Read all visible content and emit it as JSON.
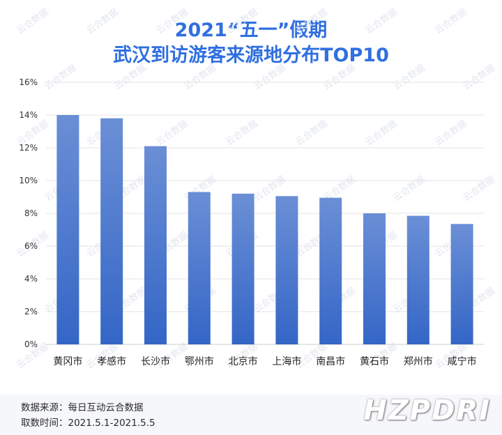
{
  "header": {
    "title_line1": "2021“五一”假期",
    "title_line2": "武汉到访游客来源地分布TOP10"
  },
  "chart_data": {
    "type": "bar",
    "title": "2021“五一”假期武汉到访游客来源地分布TOP10",
    "categories": [
      "黄冈市",
      "孝感市",
      "长沙市",
      "鄂州市",
      "北京市",
      "上海市",
      "南昌市",
      "黄石市",
      "郑州市",
      "咸宁市"
    ],
    "values": [
      14.0,
      13.8,
      12.1,
      9.3,
      9.2,
      9.05,
      8.95,
      8.0,
      7.85,
      7.35
    ],
    "y_ticks": [
      "0%",
      "2%",
      "4%",
      "6%",
      "8%",
      "10%",
      "12%",
      "14%",
      "16%"
    ],
    "ylim": [
      0,
      16
    ],
    "xlabel": "",
    "ylabel": "",
    "grid": true,
    "bar_color_top": "#6b8fd6",
    "bar_color_bottom": "#3466c6"
  },
  "footer": {
    "source": "数据来源：每日互动云合数据",
    "period": "取数时间：2021.5.1-2021.5.5",
    "brand": "HZPDRI"
  },
  "watermark": "云合数据",
  "colors": {
    "title": "#2f6fe0"
  }
}
